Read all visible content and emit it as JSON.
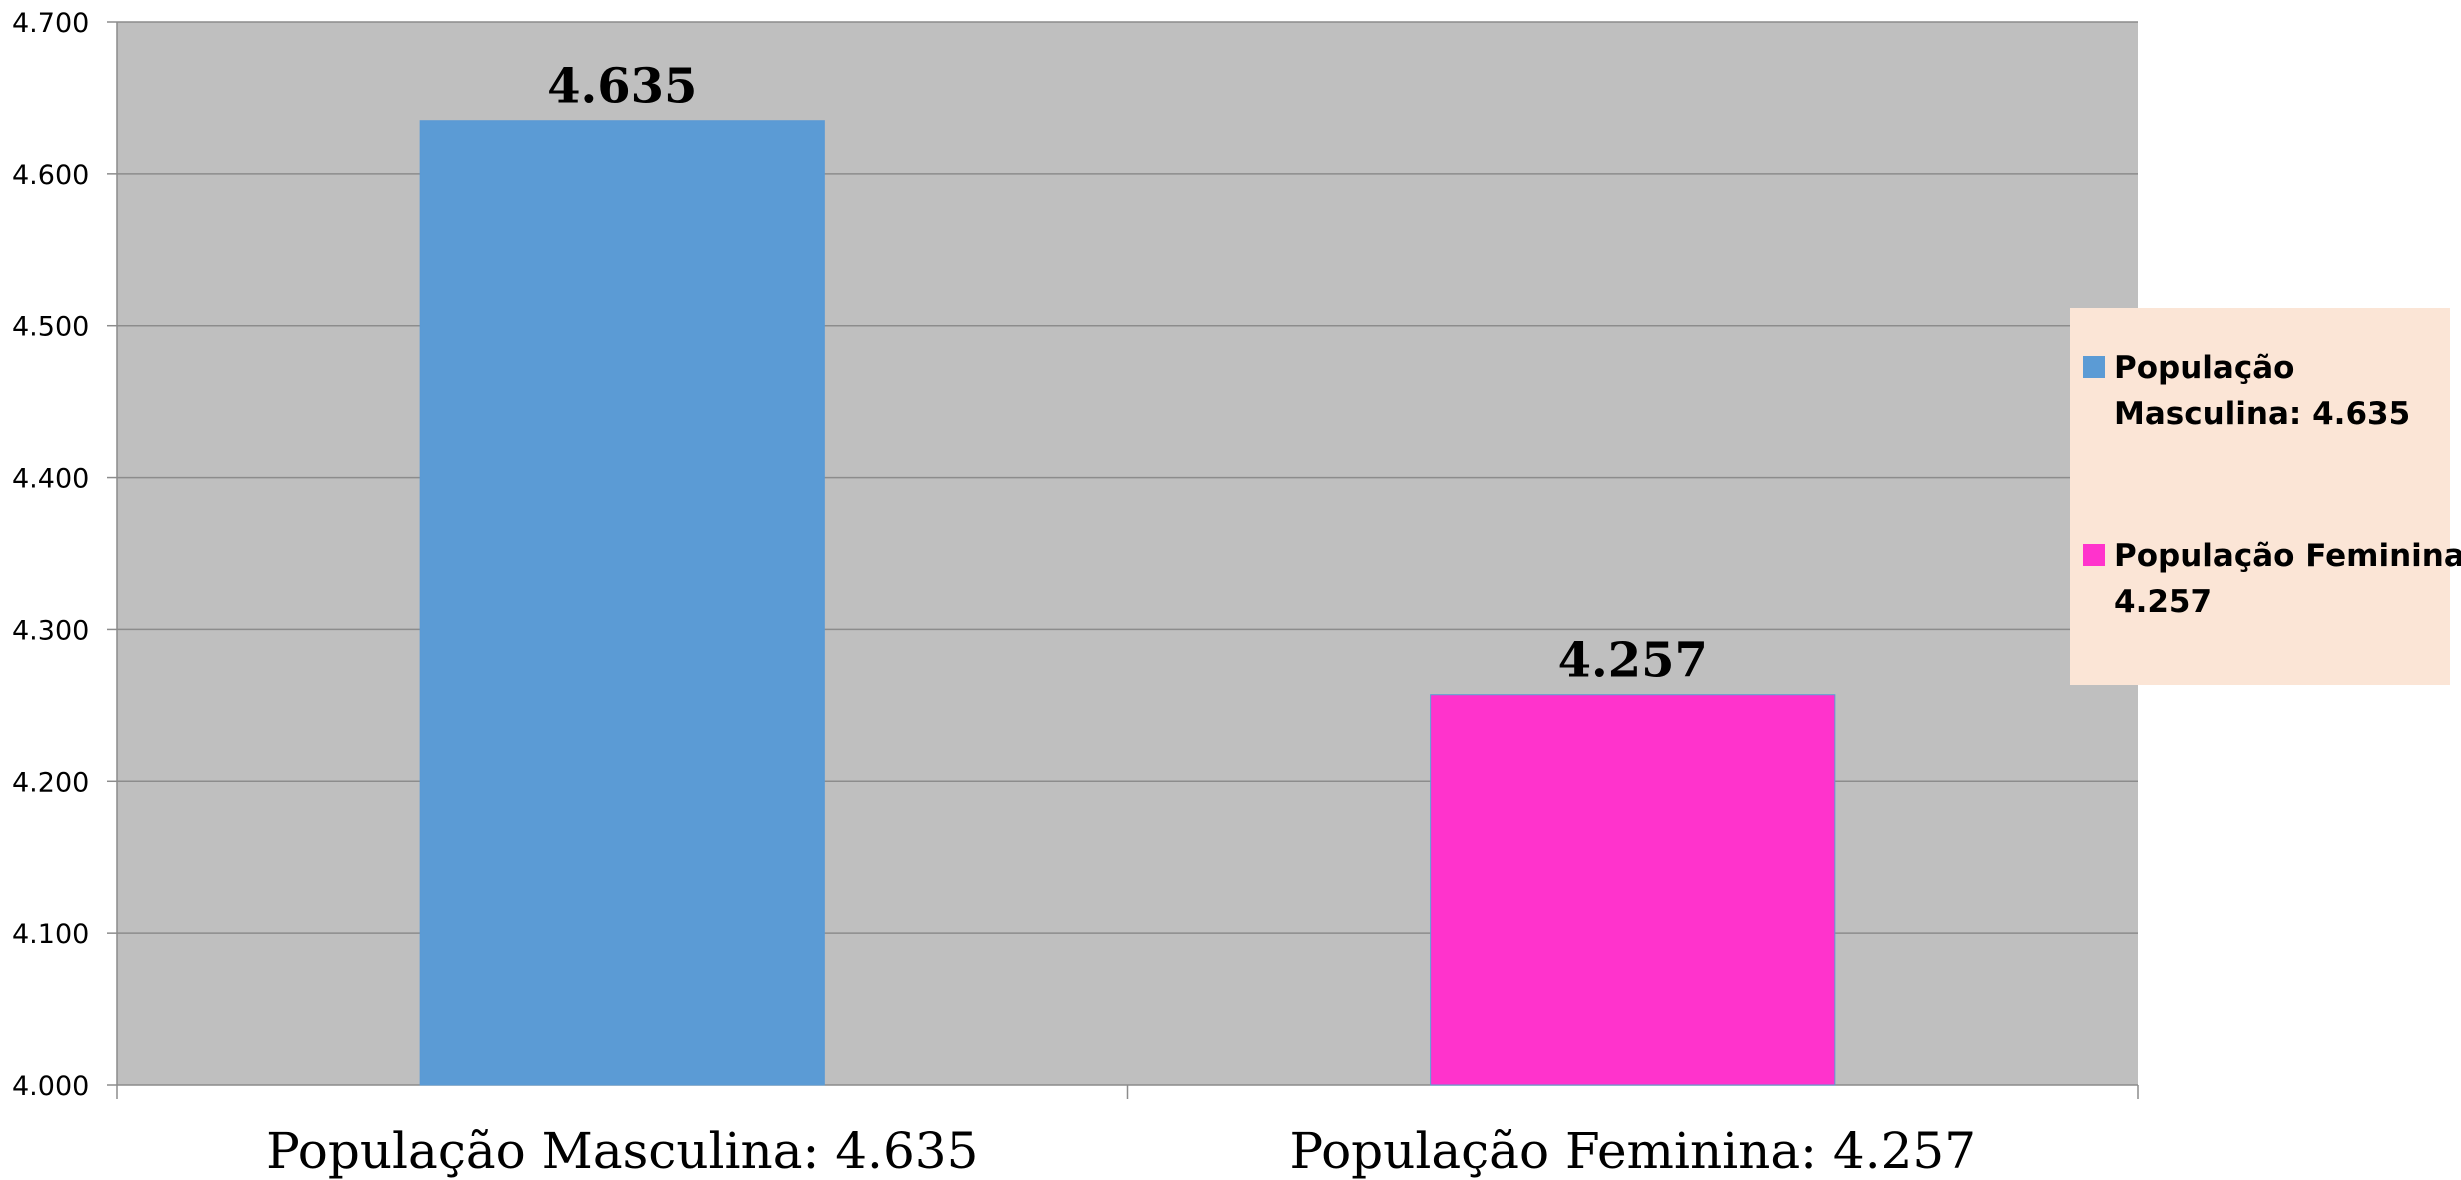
{
  "chart_data": {
    "type": "bar",
    "categories": [
      "População Masculina: 4.635",
      "População Feminina: 4.257"
    ],
    "values": [
      4635,
      4257
    ],
    "data_labels": [
      "4.635",
      "4.257"
    ],
    "bar_colors": [
      "#5B9BD5",
      "#FF33CC"
    ],
    "ylim": [
      4000,
      4700
    ],
    "y_ticks": [
      4000,
      4100,
      4200,
      4300,
      4400,
      4500,
      4600,
      4700
    ],
    "y_tick_labels": [
      "4.000",
      "4.100",
      "4.200",
      "4.300",
      "4.400",
      "4.500",
      "4.600",
      "4.700"
    ],
    "grid": true,
    "plot_background": "#BFBFBF",
    "gridline_color": "#8C8C8C",
    "legend": {
      "placement": "right",
      "background": "#FBE5D6",
      "entries": [
        {
          "lines": [
            "População",
            "Masculina: 4.635"
          ],
          "color": "#5B9BD5"
        },
        {
          "lines": [
            "População Feminina:",
            "4.257"
          ],
          "color": "#FF33CC"
        }
      ]
    },
    "title": "",
    "xlabel": "",
    "ylabel": ""
  }
}
